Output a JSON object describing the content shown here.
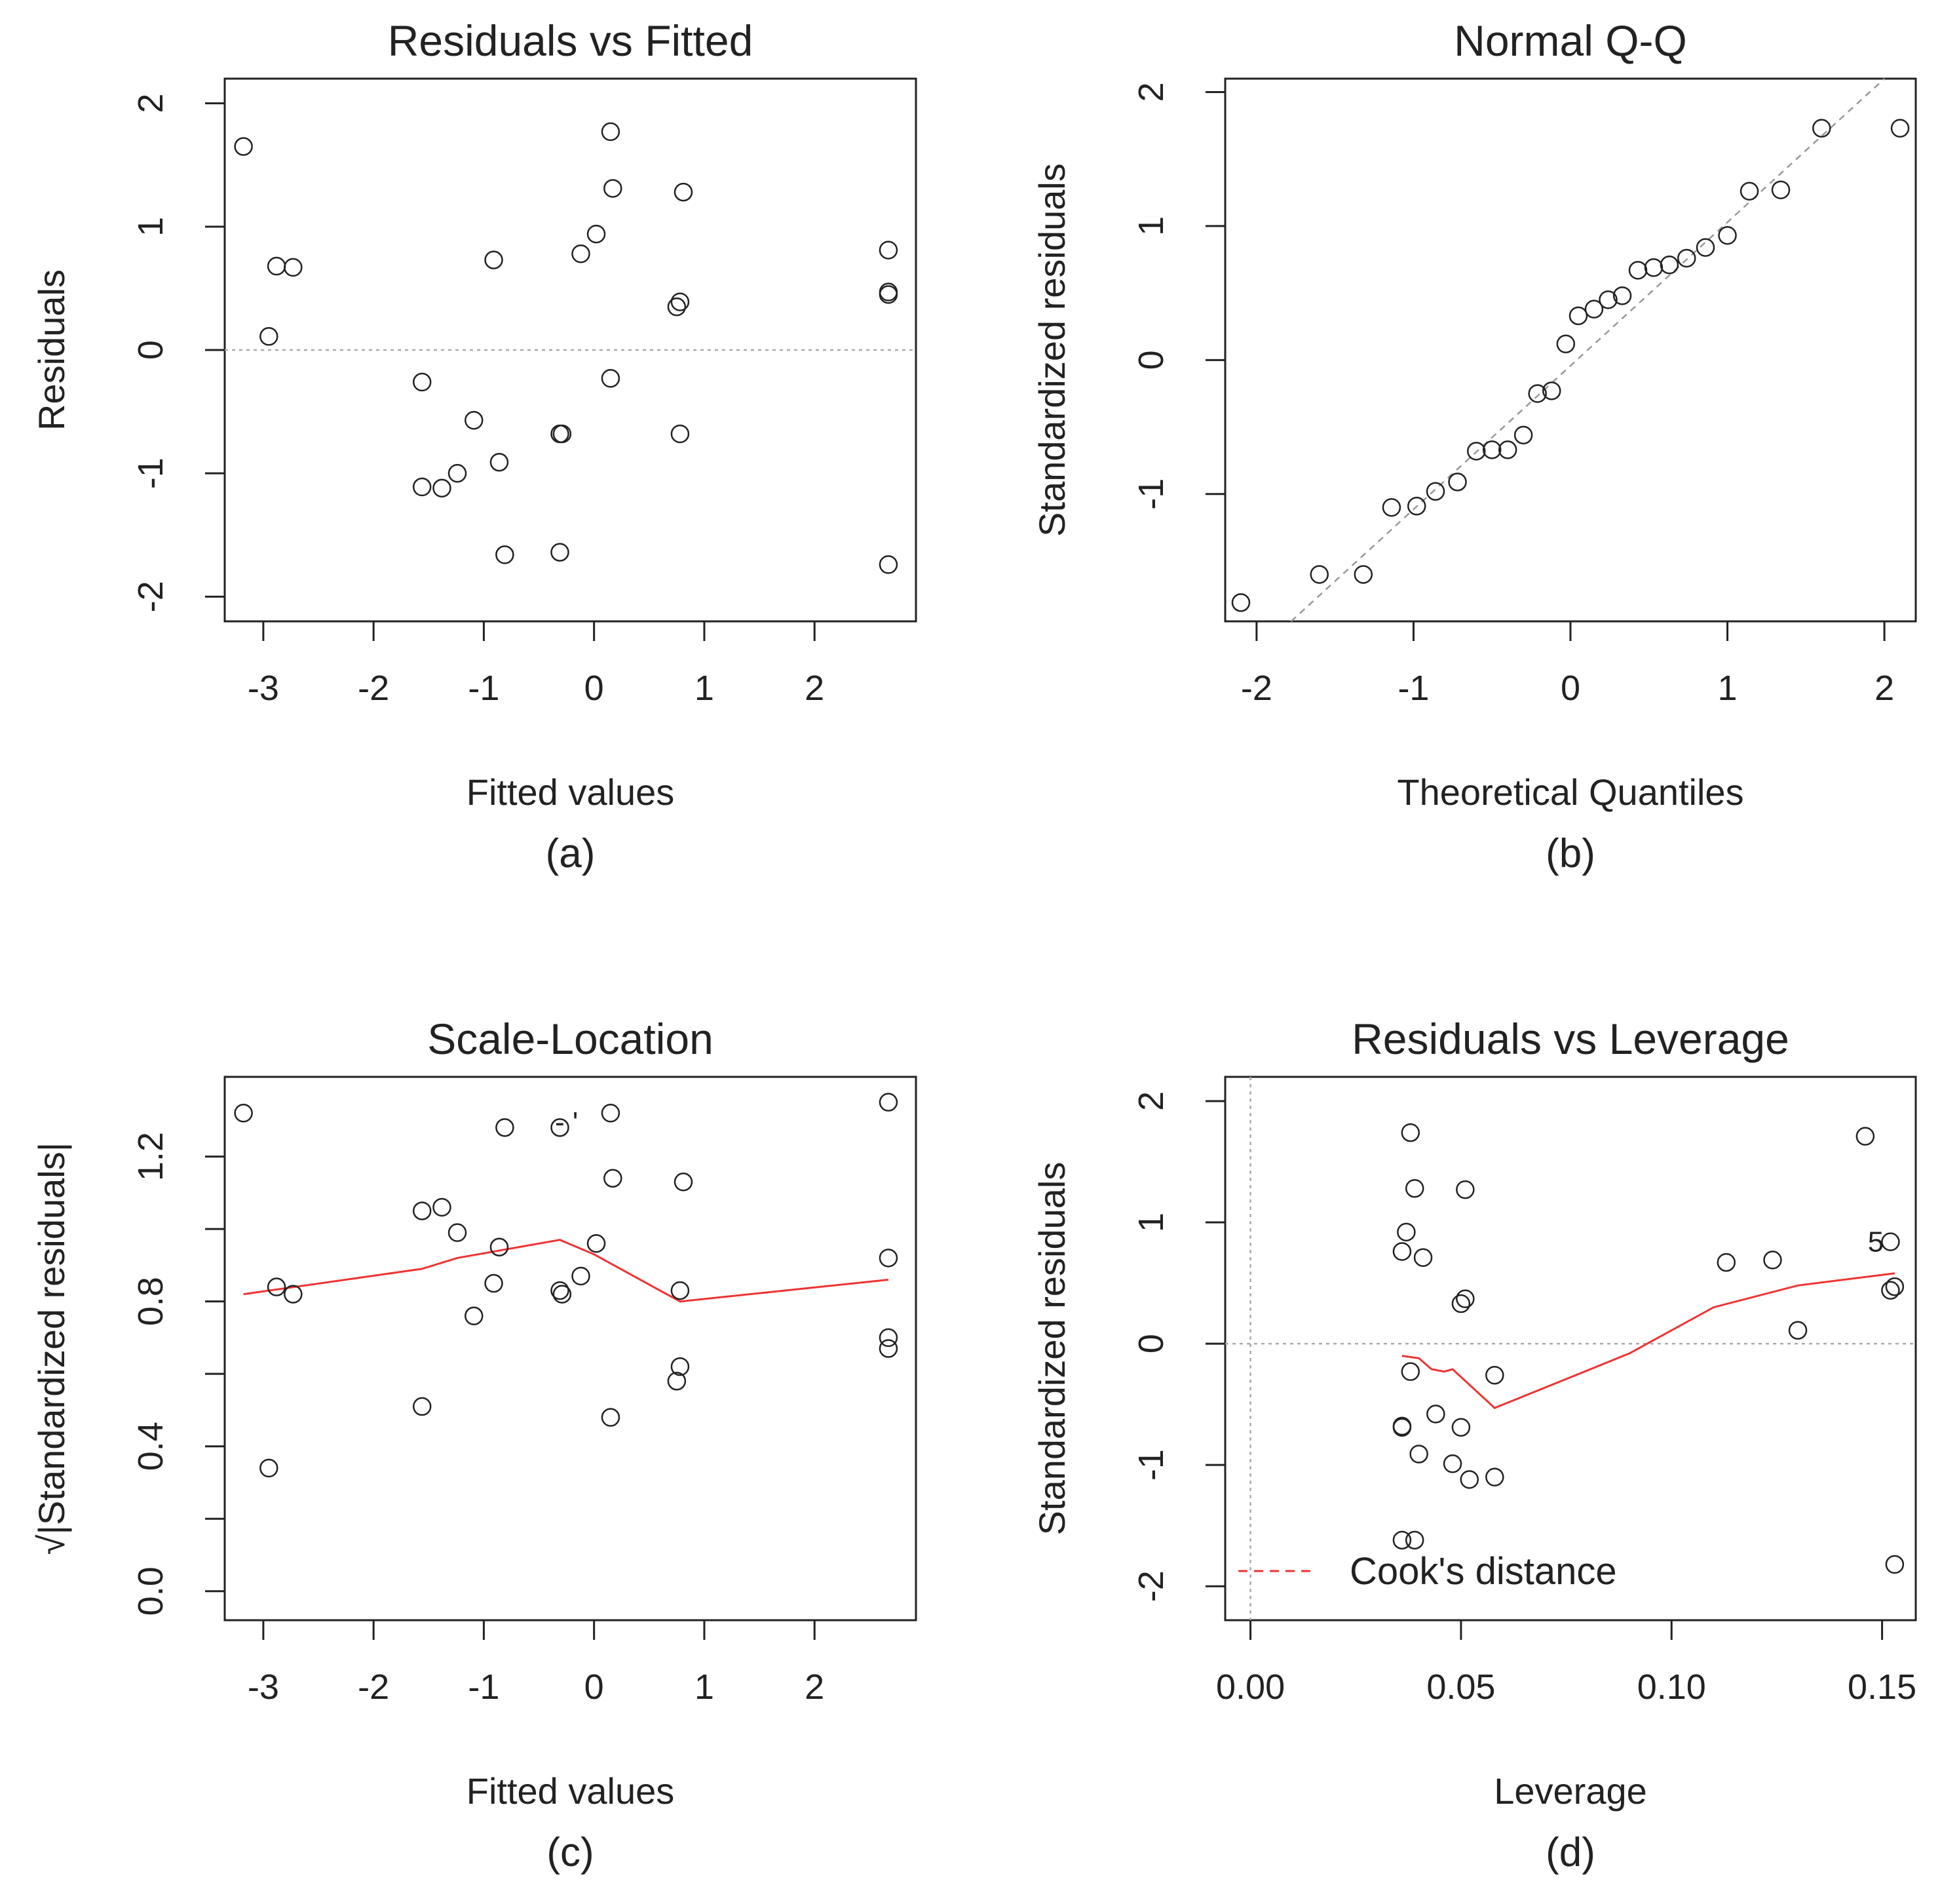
{
  "chart_data": [
    {
      "panel": "a",
      "type": "scatter",
      "title": "Residuals vs Fitted",
      "xlabel": "Fitted values",
      "ylabel": "Residuals",
      "caption": "(a)",
      "xlim": [
        -3.35,
        2.92
      ],
      "ylim": [
        -2.2,
        2.2
      ],
      "xticks": [
        -3,
        -2,
        -1,
        0,
        1,
        2
      ],
      "yticks": [
        -2,
        -1,
        0,
        1,
        2
      ],
      "reference_line": {
        "y": 0,
        "style": "dotted",
        "color": "#aaaaaa"
      },
      "points": [
        [
          -3.18,
          1.65
        ],
        [
          -2.95,
          0.11
        ],
        [
          -2.88,
          0.68
        ],
        [
          -2.73,
          0.67
        ],
        [
          -1.56,
          -0.26
        ],
        [
          -1.56,
          -1.11
        ],
        [
          -1.38,
          -1.12
        ],
        [
          -1.24,
          -1.0
        ],
        [
          -1.09,
          -0.57
        ],
        [
          -0.91,
          0.73
        ],
        [
          -0.86,
          -0.91
        ],
        [
          -0.81,
          -1.66
        ],
        [
          -0.31,
          -0.68
        ],
        [
          -0.29,
          -0.68
        ],
        [
          -0.31,
          -1.64
        ],
        [
          -0.12,
          0.78
        ],
        [
          0.02,
          0.94
        ],
        [
          0.15,
          -0.23
        ],
        [
          0.15,
          1.77
        ],
        [
          0.17,
          1.31
        ],
        [
          0.75,
          0.35
        ],
        [
          0.78,
          0.39
        ],
        [
          0.78,
          -0.68
        ],
        [
          0.81,
          1.28
        ],
        [
          2.67,
          0.81
        ],
        [
          2.67,
          0.45
        ],
        [
          2.67,
          0.47
        ],
        [
          2.67,
          -1.74
        ]
      ]
    },
    {
      "panel": "b",
      "type": "scatter",
      "title": "Normal Q-Q",
      "xlabel": "Theoretical Quantiles",
      "ylabel": "Standardized residuals",
      "caption": "(b)",
      "xlim": [
        -2.2,
        2.2
      ],
      "ylim": [
        -1.95,
        2.1
      ],
      "xticks": [
        -2,
        -1,
        0,
        1,
        2
      ],
      "yticks": [
        -1,
        0,
        1,
        2
      ],
      "reference_line": {
        "points": [
          [
            -1.78,
            -1.95
          ],
          [
            2.0,
            2.1
          ]
        ],
        "style": "dashed",
        "color": "#999999"
      },
      "points": [
        [
          -2.1,
          -1.81
        ],
        [
          -1.6,
          -1.6
        ],
        [
          -1.32,
          -1.6
        ],
        [
          -1.14,
          -1.1
        ],
        [
          -0.98,
          -1.09
        ],
        [
          -0.86,
          -0.98
        ],
        [
          -0.72,
          -0.91
        ],
        [
          -0.6,
          -0.68
        ],
        [
          -0.5,
          -0.67
        ],
        [
          -0.4,
          -0.67
        ],
        [
          -0.3,
          -0.56
        ],
        [
          -0.21,
          -0.25
        ],
        [
          -0.12,
          -0.23
        ],
        [
          -0.03,
          0.12
        ],
        [
          0.05,
          0.33
        ],
        [
          0.15,
          0.38
        ],
        [
          0.24,
          0.45
        ],
        [
          0.33,
          0.48
        ],
        [
          0.43,
          0.67
        ],
        [
          0.53,
          0.69
        ],
        [
          0.63,
          0.71
        ],
        [
          0.74,
          0.76
        ],
        [
          0.86,
          0.84
        ],
        [
          1.0,
          0.93
        ],
        [
          1.14,
          1.26
        ],
        [
          1.34,
          1.27
        ],
        [
          1.6,
          1.73
        ],
        [
          2.1,
          1.73
        ]
      ]
    },
    {
      "panel": "c",
      "type": "scatter",
      "title": "Scale-Location",
      "xlabel": "Fitted values",
      "ylabel": "√|Standardized residuals|",
      "caption": "(c)",
      "xlim": [
        -3.35,
        2.92
      ],
      "ylim": [
        -0.08,
        1.42
      ],
      "xticks": [
        -3,
        -2,
        -1,
        0,
        1,
        2
      ],
      "yticks": [
        0.0,
        0.4,
        0.8,
        1.2
      ],
      "ytick_labels": [
        "0.0",
        "0.4",
        "0.8",
        "1.2"
      ],
      "extra_ticks": [
        0.2,
        0.6,
        1.0
      ],
      "points": [
        [
          -3.18,
          1.32
        ],
        [
          -2.95,
          0.34
        ],
        [
          -2.88,
          0.84
        ],
        [
          -2.73,
          0.82
        ],
        [
          -1.56,
          1.05
        ],
        [
          -1.56,
          0.51
        ],
        [
          -1.38,
          1.06
        ],
        [
          -1.24,
          0.99
        ],
        [
          -1.09,
          0.76
        ],
        [
          -0.91,
          0.85
        ],
        [
          -0.86,
          0.95
        ],
        [
          -0.81,
          1.28
        ],
        [
          -0.31,
          0.83
        ],
        [
          -0.29,
          0.82
        ],
        [
          -0.31,
          1.28
        ],
        [
          -0.12,
          0.87
        ],
        [
          0.02,
          0.96
        ],
        [
          0.15,
          1.32
        ],
        [
          0.15,
          0.48
        ],
        [
          0.17,
          1.14
        ],
        [
          0.75,
          0.58
        ],
        [
          0.78,
          0.62
        ],
        [
          0.78,
          0.83
        ],
        [
          0.81,
          1.13
        ],
        [
          2.67,
          1.35
        ],
        [
          2.67,
          0.92
        ],
        [
          2.67,
          0.7
        ],
        [
          2.67,
          0.67
        ]
      ],
      "smooth": {
        "color": "#ee3333",
        "points": [
          [
            -3.18,
            0.82
          ],
          [
            -1.56,
            0.89
          ],
          [
            -1.24,
            0.92
          ],
          [
            -0.31,
            0.97
          ],
          [
            0.0,
            0.93
          ],
          [
            0.78,
            0.8
          ],
          [
            2.67,
            0.86
          ]
        ]
      },
      "annotation": {
        "text": "- '",
        "x": -0.25,
        "y": 1.29
      }
    },
    {
      "panel": "d",
      "type": "scatter",
      "title": "Residuals vs Leverage",
      "xlabel": "Leverage",
      "ylabel": "Standardized residuals",
      "caption": "(d)",
      "xlim": [
        -0.006,
        0.158
      ],
      "ylim": [
        -2.28,
        2.2
      ],
      "xticks": [
        0.0,
        0.05,
        0.1,
        0.15
      ],
      "xtick_labels": [
        "0.00",
        "0.05",
        "0.10",
        "0.15"
      ],
      "yticks": [
        -2,
        -1,
        0,
        1,
        2
      ],
      "reference_lines": [
        {
          "y": 0,
          "style": "dotted",
          "color": "#aaaaaa"
        },
        {
          "x": 0,
          "style": "dotted",
          "color": "#aaaaaa"
        }
      ],
      "points": [
        [
          0.036,
          0.76
        ],
        [
          0.037,
          0.92
        ],
        [
          0.038,
          1.74
        ],
        [
          0.039,
          1.28
        ],
        [
          0.041,
          0.71
        ],
        [
          0.038,
          -0.23
        ],
        [
          0.036,
          -0.68
        ],
        [
          0.036,
          -0.69
        ],
        [
          0.04,
          -0.91
        ],
        [
          0.036,
          -1.62
        ],
        [
          0.039,
          -1.62
        ],
        [
          0.044,
          -0.58
        ],
        [
          0.048,
          -0.99
        ],
        [
          0.05,
          -0.69
        ],
        [
          0.052,
          -1.12
        ],
        [
          0.05,
          0.33
        ],
        [
          0.051,
          0.37
        ],
        [
          0.051,
          1.27
        ],
        [
          0.058,
          -0.26
        ],
        [
          0.058,
          -1.1
        ],
        [
          0.113,
          0.67
        ],
        [
          0.124,
          0.69
        ],
        [
          0.13,
          0.11
        ],
        [
          0.146,
          1.71
        ],
        [
          0.152,
          0.84
        ],
        [
          0.152,
          0.44
        ],
        [
          0.153,
          0.47
        ],
        [
          0.153,
          -1.82
        ]
      ],
      "smooth": {
        "color": "#ee3333",
        "points": [
          [
            0.036,
            -0.1
          ],
          [
            0.04,
            -0.12
          ],
          [
            0.043,
            -0.21
          ],
          [
            0.046,
            -0.23
          ],
          [
            0.048,
            -0.21
          ],
          [
            0.058,
            -0.53
          ],
          [
            0.09,
            -0.08
          ],
          [
            0.11,
            0.3
          ],
          [
            0.13,
            0.48
          ],
          [
            0.153,
            0.58
          ]
        ]
      },
      "point_labels": [
        {
          "text": "5",
          "x": 0.1485,
          "y": 0.84
        }
      ],
      "legend": {
        "label": "Cook's distance",
        "position": "bottom-left",
        "color": "#ee3333",
        "style": "dashed"
      }
    }
  ]
}
